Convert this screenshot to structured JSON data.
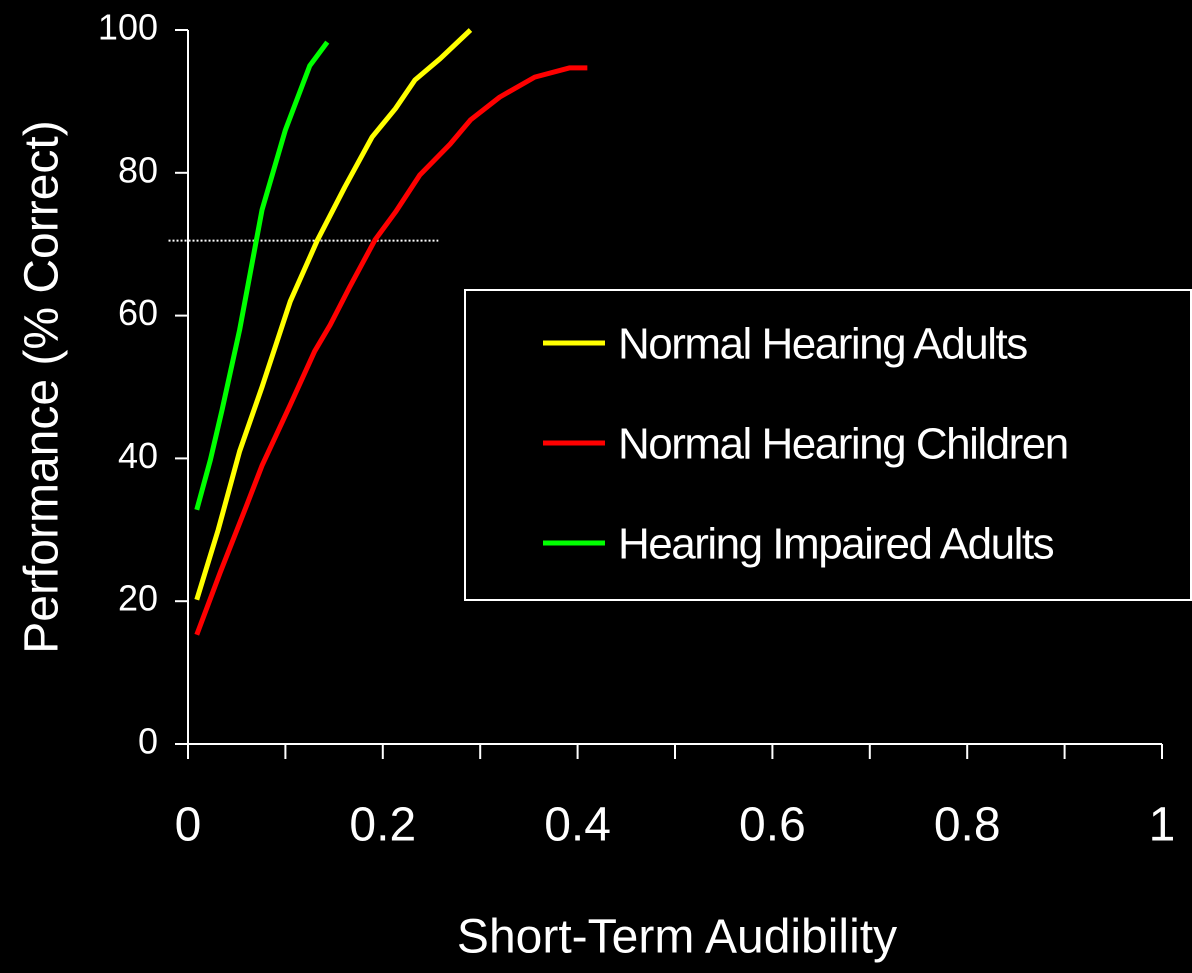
{
  "chart_data": {
    "type": "line",
    "xlabel": "Short-Term Audibility",
    "ylabel": "Performance (% Correct)",
    "xlim": [
      0,
      1
    ],
    "xticks": [
      0,
      0.2,
      0.4,
      0.6,
      0.8,
      1
    ],
    "xticks_minor": [
      0.1,
      0.3,
      0.5,
      0.7,
      0.9
    ],
    "ylim": [
      0,
      100
    ],
    "yticks": [
      0,
      20,
      40,
      60,
      80,
      100
    ],
    "reference_line": {
      "y": 70.5,
      "x": [
        -0.02,
        0.257
      ]
    },
    "legend": "right",
    "series": [
      {
        "name": "Normal Hearing Adults",
        "color": "#ffff00",
        "x": [
          0.009,
          0.031,
          0.053,
          0.076,
          0.105,
          0.133,
          0.161,
          0.189,
          0.213,
          0.233,
          0.259,
          0.29
        ],
        "values": [
          20.2,
          30,
          41,
          50,
          62,
          70.6,
          78,
          85,
          89,
          93,
          96,
          100
        ]
      },
      {
        "name": "Normal Hearing Children",
        "color": "#ff0000",
        "x": [
          0.009,
          0.033,
          0.059,
          0.076,
          0.105,
          0.13,
          0.146,
          0.166,
          0.192,
          0.213,
          0.238,
          0.269,
          0.29,
          0.32,
          0.356,
          0.392,
          0.41
        ],
        "values": [
          15.3,
          24,
          33,
          39,
          47.5,
          55,
          58.7,
          64,
          70.6,
          74.5,
          79.7,
          84,
          87.4,
          90.6,
          93.4,
          94.7,
          94.7
        ]
      },
      {
        "name": "Hearing Impaired Adults",
        "color": "#00ff00",
        "x": [
          0.009,
          0.023,
          0.035,
          0.053,
          0.076,
          0.1,
          0.125,
          0.143
        ],
        "values": [
          32.8,
          39.8,
          46.8,
          58,
          74.8,
          86,
          95,
          98.3
        ]
      }
    ]
  }
}
